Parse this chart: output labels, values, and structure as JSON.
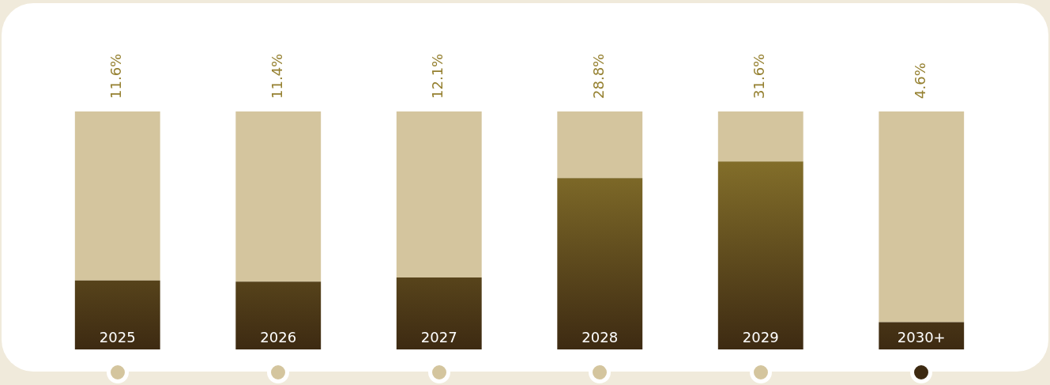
{
  "chart_data": {
    "type": "bar",
    "categories": [
      "2025",
      "2026",
      "2027",
      "2028",
      "2029",
      "2030+"
    ],
    "stacked": true,
    "series": [
      {
        "color": "#958030",
        "values": [
          11.6,
          11.4,
          12.1,
          28.8,
          31.6,
          4.6
        ],
        "value_labels": [
          "11.6%",
          "11.4%",
          "12.1%",
          "28.8%",
          "31.6%",
          "4.6%"
        ]
      },
      {
        "color": "#d4c59e",
        "values": [
          28.4,
          28.6,
          27.9,
          11.2,
          8.4,
          35.4
        ]
      }
    ]
  }
}
